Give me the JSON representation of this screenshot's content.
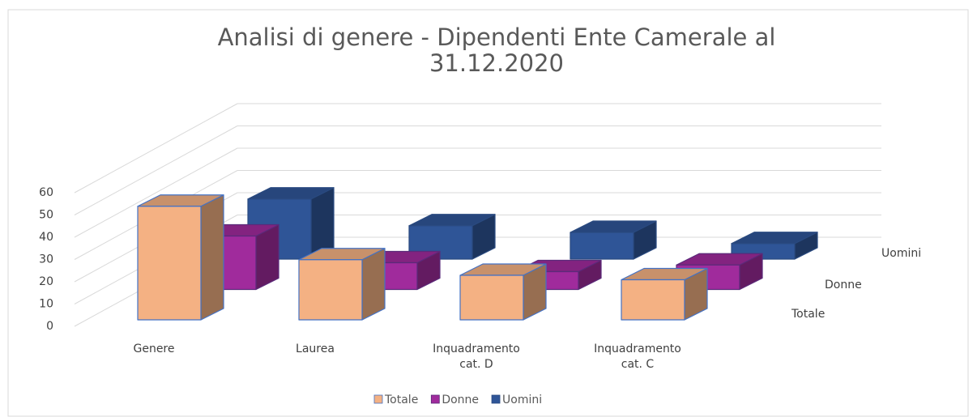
{
  "chart_data": {
    "type": "bar3d",
    "title": "Analisi di genere - Dipendenti Ente Camerale al 31.12.2020",
    "categories": [
      "Genere",
      "Laurea",
      "Inquadramento cat. D",
      "Inquadramento cat. C"
    ],
    "series": [
      {
        "name": "Totale",
        "color": "#f4b183",
        "values": [
          51,
          27,
          20,
          18
        ]
      },
      {
        "name": "Donne",
        "color": "#a02b9c",
        "values": [
          24,
          12,
          8,
          11
        ]
      },
      {
        "name": "Uomini",
        "color": "#2f5597",
        "values": [
          27,
          15,
          12,
          7
        ]
      }
    ],
    "ylim": [
      0,
      60
    ],
    "yticks": [
      0,
      10,
      20,
      30,
      40,
      50,
      60
    ],
    "grid": true,
    "legend": "bottom"
  }
}
